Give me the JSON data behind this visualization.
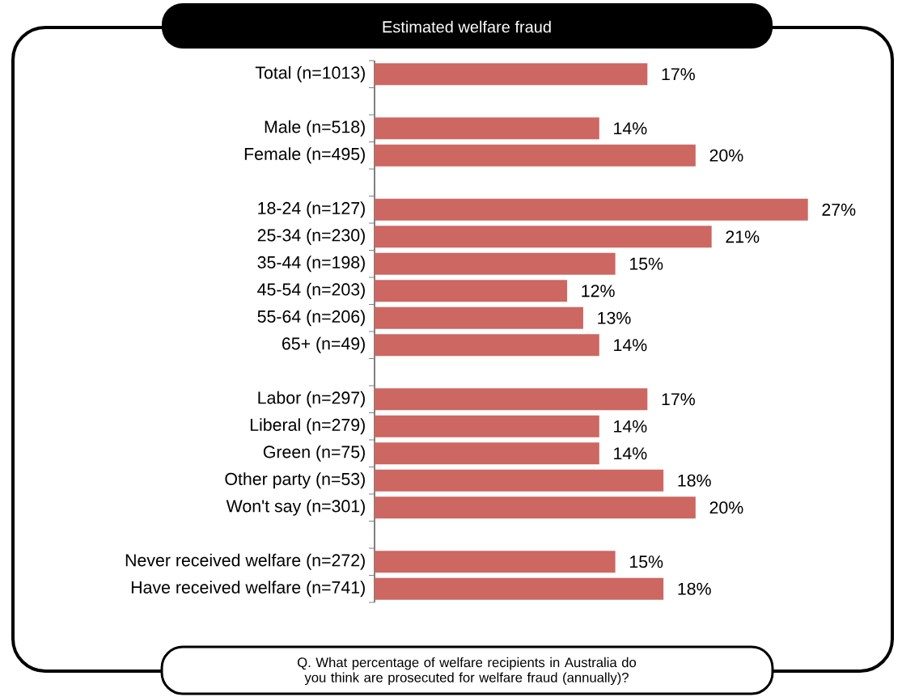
{
  "chart_data": {
    "type": "bar",
    "orientation": "horizontal",
    "title": "Estimated welfare fraud",
    "categories": [
      "Total (n=1013)",
      null,
      "Male (n=518)",
      "Female (n=495)",
      null,
      "18-24 (n=127)",
      "25-34 (n=230)",
      "35-44 (n=198)",
      "45-54 (n=203)",
      "55-64 (n=206)",
      "65+ (n=49)",
      null,
      "Labor (n=297)",
      "Liberal (n=279)",
      "Green (n=75)",
      "Other party (n=53)",
      "Won't say (n=301)",
      null,
      "Never received welfare (n=272)",
      "Have received welfare (n=741)"
    ],
    "values": [
      17,
      null,
      14,
      20,
      null,
      27,
      21,
      15,
      12,
      13,
      14,
      null,
      17,
      14,
      14,
      18,
      20,
      null,
      15,
      18
    ],
    "value_labels": [
      "17%",
      null,
      "14%",
      "20%",
      null,
      "27%",
      "21%",
      "15%",
      "12%",
      "13%",
      "14%",
      null,
      "17%",
      "14%",
      "14%",
      "18%",
      "20%",
      null,
      "15%",
      "18%"
    ],
    "color": "#cd6761",
    "tick_labels": "y",
    "annotations": [
      "Q. What percentage of welfare recipients in Australia do you think are prosecuted for welfare fraud (annually)?"
    ]
  }
}
